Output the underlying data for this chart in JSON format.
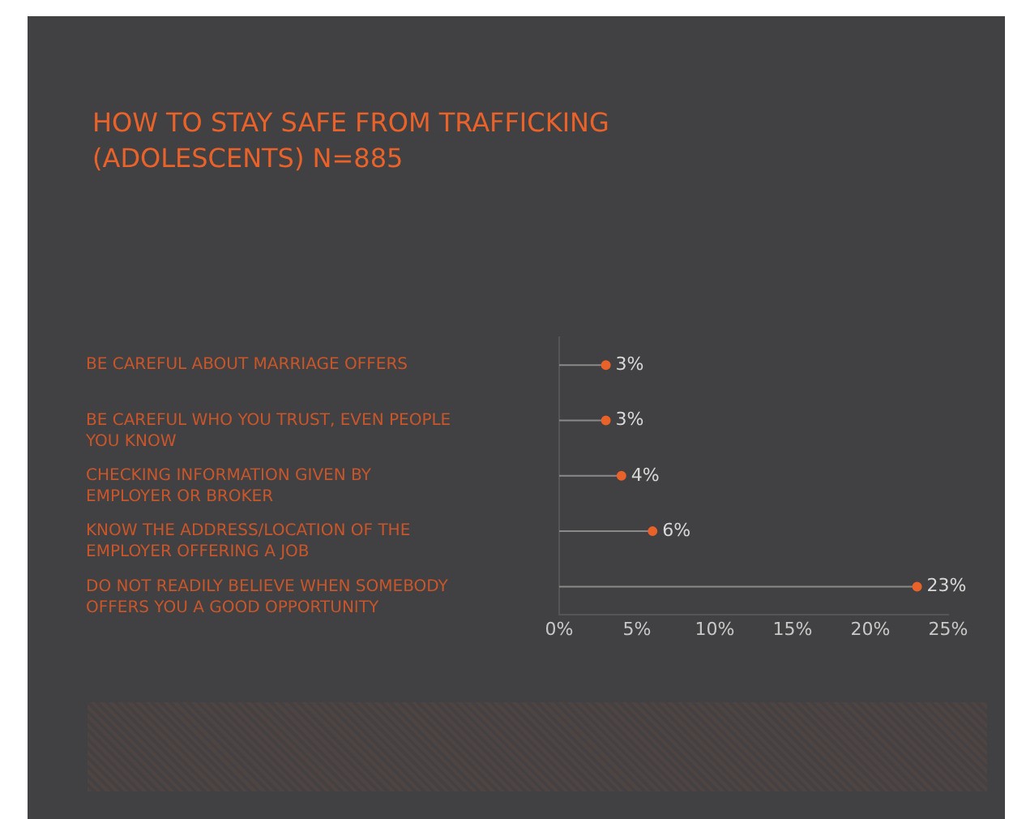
{
  "chart_data": {
    "type": "lollipop",
    "orientation": "horizontal",
    "title": "HOW TO STAY SAFE FROM TRAFFICKING (ADOLESCENTS) N=885",
    "categories": [
      "BE CAREFUL ABOUT MARRIAGE OFFERS",
      "BE CAREFUL WHO YOU TRUST, EVEN PEOPLE YOU KNOW",
      "CHECKING INFORMATION GIVEN BY EMPLOYER OR BROKER",
      "KNOW THE ADDRESS/LOCATION OF THE EMPLOYER OFFERING A JOB",
      "DO NOT READILY BELIEVE WHEN SOMEBODY OFFERS YOU A GOOD OPPORTUNITY"
    ],
    "values": [
      3,
      3,
      4,
      6,
      23
    ],
    "color": "#e8622a",
    "marker": "circle",
    "data_labels": true,
    "value_labels": [
      "3%",
      "3%",
      "4%",
      "6%",
      "23%"
    ],
    "xlim": [
      0,
      25
    ],
    "xticks": [
      {
        "value": 0,
        "label": "0%"
      },
      {
        "value": 5,
        "label": "5%"
      },
      {
        "value": 10,
        "label": "10%"
      },
      {
        "value": 15,
        "label": "15%"
      },
      {
        "value": 20,
        "label": "20%"
      },
      {
        "value": 25,
        "label": "25%"
      }
    ],
    "grid": false
  }
}
